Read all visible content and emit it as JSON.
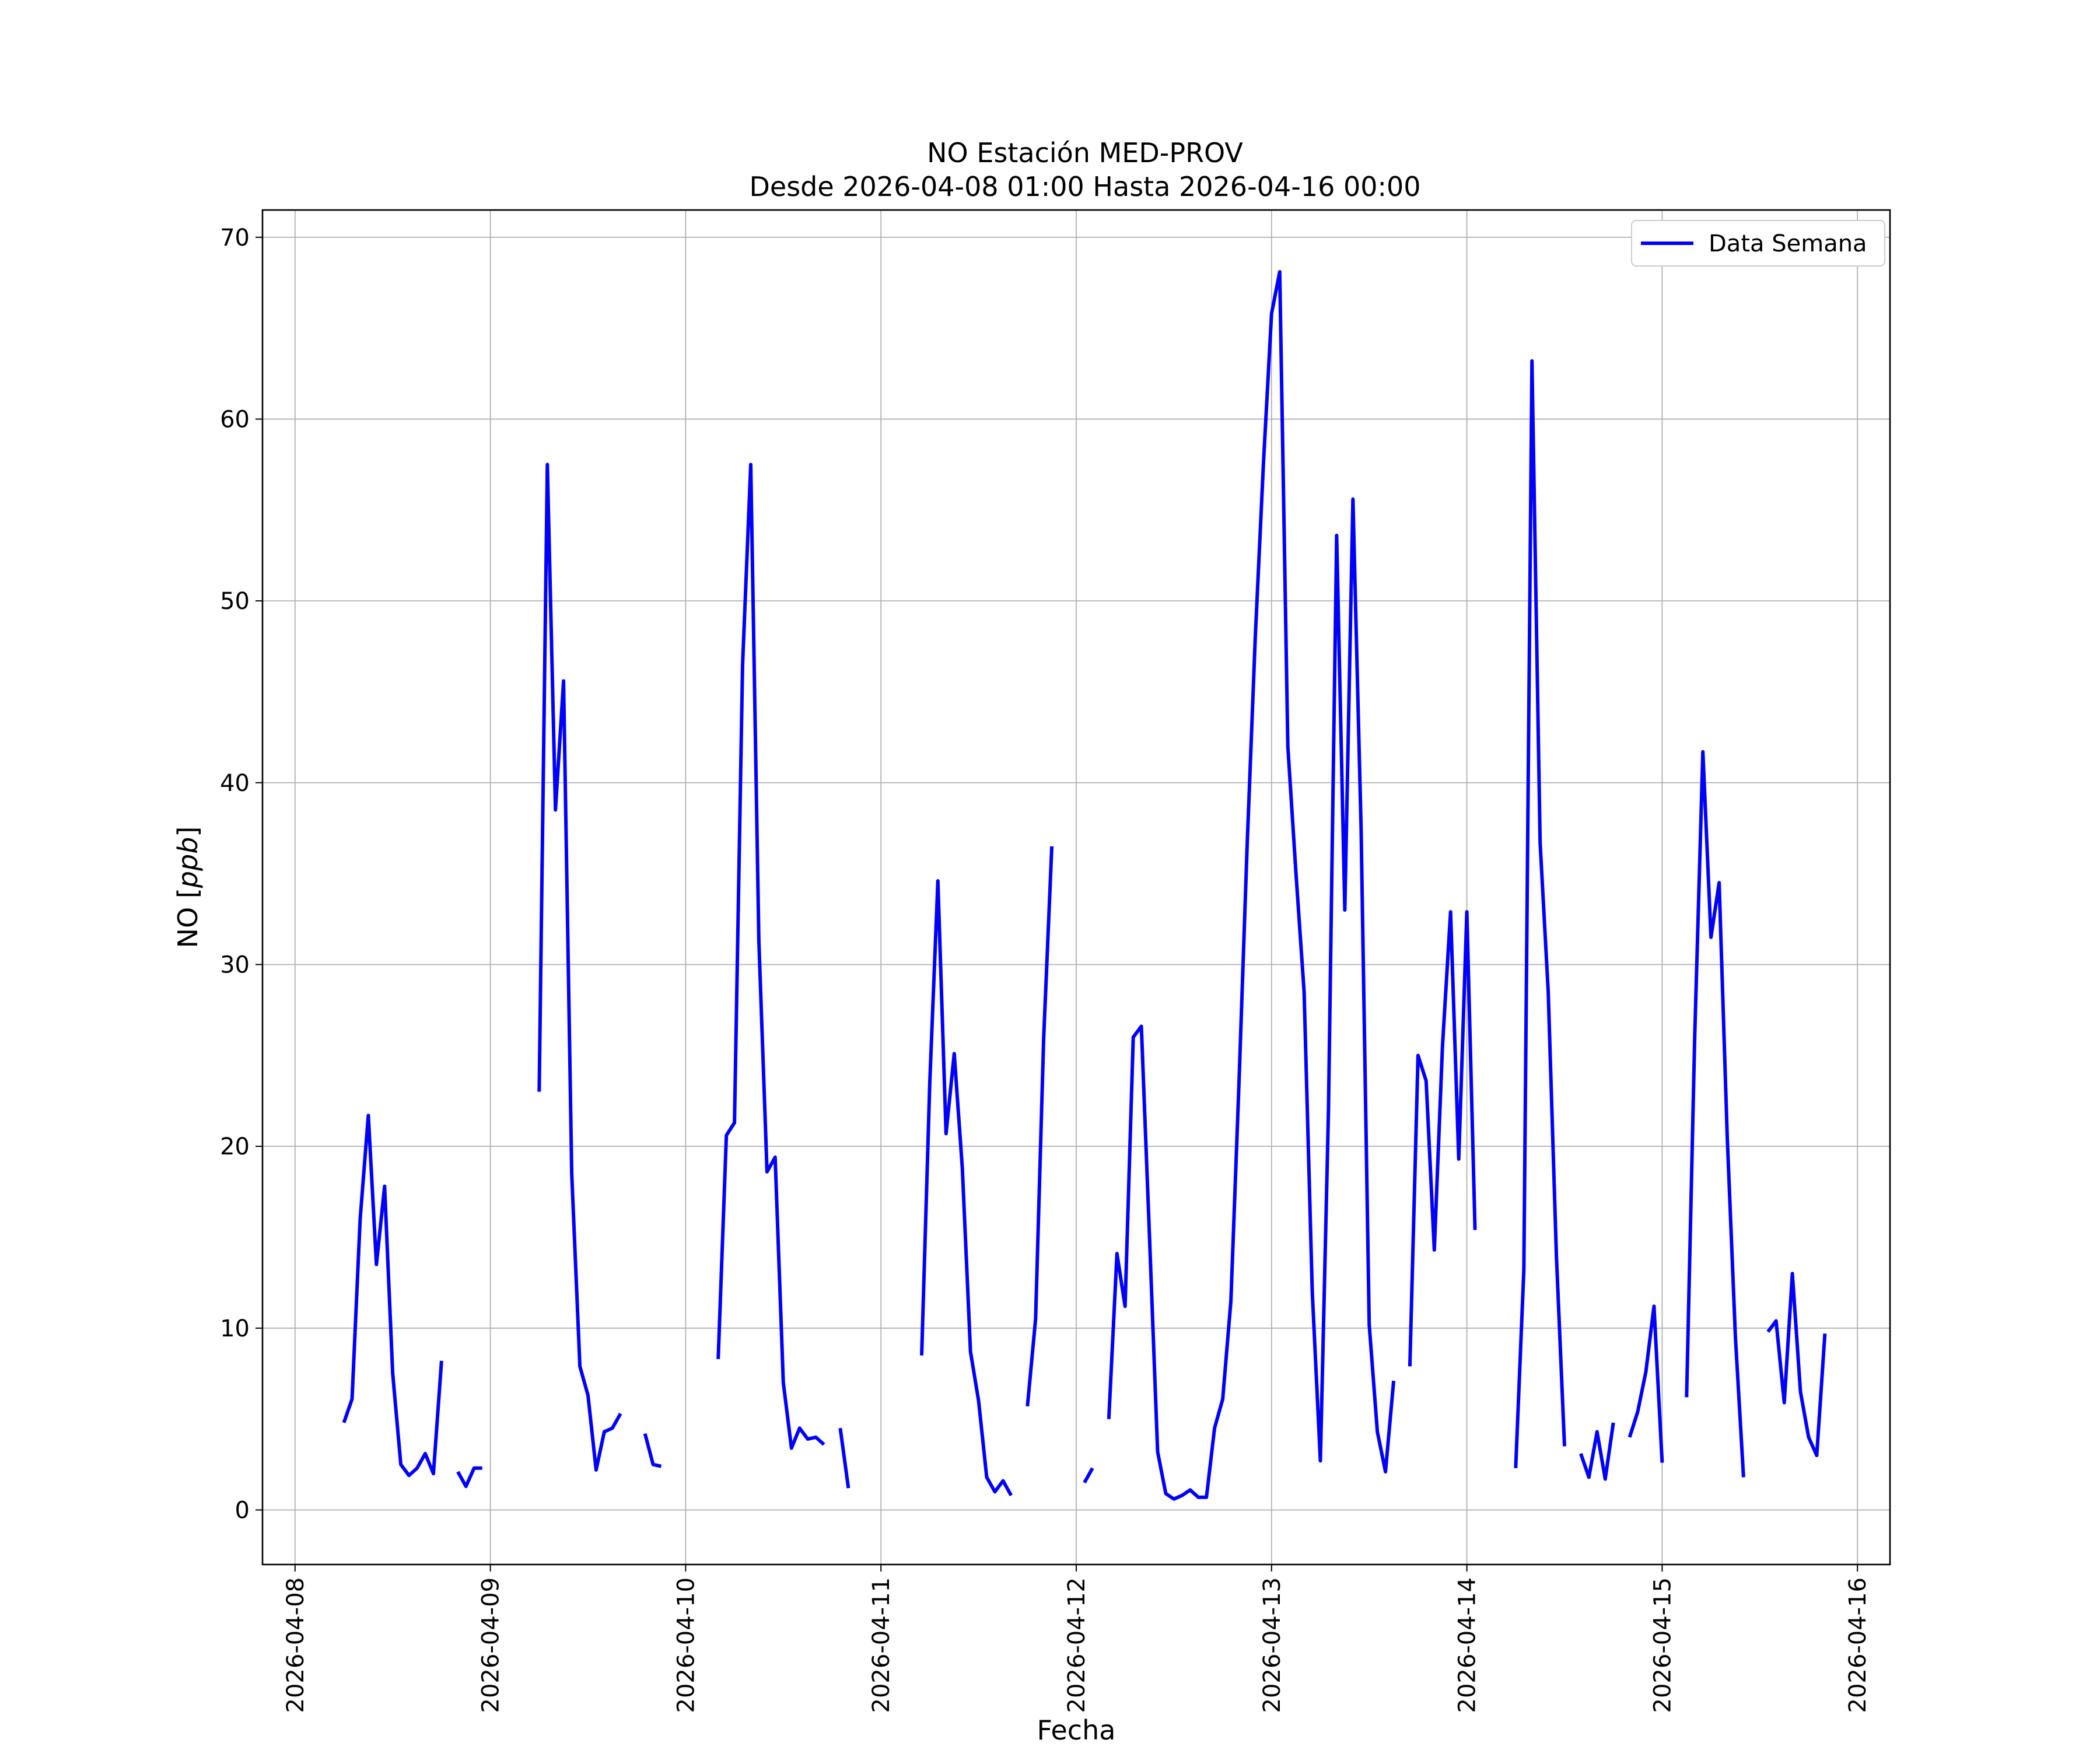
{
  "chart_data": {
    "type": "line",
    "title": "NO Estación MED-PROV",
    "subtitle": "Desde 2026-04-08 01:00 Hasta 2026-04-16 00:00",
    "xlabel": "Fecha",
    "ylabel": "NO [ppb]",
    "ylabel_plain": "NO [",
    "ylabel_italic": "ppb",
    "ylabel_close": "]",
    "x_type": "datetime",
    "xlim": [
      "2026-04-07 20:00",
      "2026-04-16 04:00"
    ],
    "ylim": [
      -3,
      71.5
    ],
    "x_ticks": [
      "2026-04-08",
      "2026-04-09",
      "2026-04-10",
      "2026-04-11",
      "2026-04-12",
      "2026-04-13",
      "2026-04-14",
      "2026-04-15",
      "2026-04-16"
    ],
    "y_ticks": [
      0,
      10,
      20,
      30,
      40,
      50,
      60,
      70
    ],
    "grid": true,
    "legend_position": "top-right",
    "series": [
      {
        "name": "Data Semana",
        "color": "#0000ff",
        "segments": [
          [
            [
              "2026-04-08 06:00",
              4.8
            ],
            [
              "2026-04-08 07:00",
              6.1
            ],
            [
              "2026-04-08 08:00",
              16.0
            ],
            [
              "2026-04-08 09:00",
              21.7
            ],
            [
              "2026-04-08 10:00",
              13.5
            ],
            [
              "2026-04-08 11:00",
              17.8
            ],
            [
              "2026-04-08 12:00",
              7.5
            ],
            [
              "2026-04-08 13:00",
              2.5
            ],
            [
              "2026-04-08 14:00",
              1.9
            ],
            [
              "2026-04-08 15:00",
              2.3
            ],
            [
              "2026-04-08 16:00",
              3.1
            ],
            [
              "2026-04-08 17:00",
              2.0
            ],
            [
              "2026-04-08 18:00",
              8.2
            ]
          ],
          [
            [
              "2026-04-08 20:00",
              2.1
            ],
            [
              "2026-04-08 21:00",
              1.3
            ],
            [
              "2026-04-08 22:00",
              2.3
            ],
            [
              "2026-04-08 23:00",
              2.3
            ]
          ],
          [
            [
              "2026-04-09 06:00",
              23.0
            ],
            [
              "2026-04-09 07:00",
              57.5
            ],
            [
              "2026-04-09 08:00",
              38.5
            ],
            [
              "2026-04-09 09:00",
              45.6
            ],
            [
              "2026-04-09 10:00",
              18.5
            ],
            [
              "2026-04-09 11:00",
              7.9
            ],
            [
              "2026-04-09 12:00",
              6.3
            ],
            [
              "2026-04-09 13:00",
              2.2
            ],
            [
              "2026-04-09 14:00",
              4.3
            ],
            [
              "2026-04-09 15:00",
              4.5
            ],
            [
              "2026-04-09 16:00",
              5.3
            ]
          ],
          [
            [
              "2026-04-09 19:00",
              4.2
            ],
            [
              "2026-04-09 20:00",
              2.5
            ],
            [
              "2026-04-09 21:00",
              2.4
            ]
          ],
          [
            [
              "2026-04-10 04:00",
              8.3
            ],
            [
              "2026-04-10 05:00",
              20.6
            ],
            [
              "2026-04-10 06:00",
              21.3
            ],
            [
              "2026-04-10 07:00",
              46.5
            ],
            [
              "2026-04-10 08:00",
              57.5
            ],
            [
              "2026-04-10 09:00",
              31.3
            ],
            [
              "2026-04-10 10:00",
              18.6
            ],
            [
              "2026-04-10 11:00",
              19.4
            ],
            [
              "2026-04-10 12:00",
              7.0
            ],
            [
              "2026-04-10 13:00",
              3.4
            ],
            [
              "2026-04-10 14:00",
              4.5
            ],
            [
              "2026-04-10 15:00",
              3.9
            ],
            [
              "2026-04-10 16:00",
              4.0
            ],
            [
              "2026-04-10 17:00",
              3.6
            ]
          ],
          [
            [
              "2026-04-10 19:00",
              4.5
            ],
            [
              "2026-04-10 20:00",
              1.2
            ]
          ],
          [
            [
              "2026-04-11 05:00",
              8.5
            ],
            [
              "2026-04-11 06:00",
              23.5
            ],
            [
              "2026-04-11 07:00",
              34.6
            ],
            [
              "2026-04-11 08:00",
              20.7
            ],
            [
              "2026-04-11 09:00",
              25.1
            ],
            [
              "2026-04-11 10:00",
              18.8
            ],
            [
              "2026-04-11 11:00",
              8.7
            ],
            [
              "2026-04-11 12:00",
              6.0
            ],
            [
              "2026-04-11 13:00",
              1.8
            ],
            [
              "2026-04-11 14:00",
              1.0
            ],
            [
              "2026-04-11 15:00",
              1.6
            ],
            [
              "2026-04-11 16:00",
              0.8
            ]
          ],
          [
            [
              "2026-04-11 18:00",
              5.7
            ],
            [
              "2026-04-11 19:00",
              10.5
            ],
            [
              "2026-04-11 20:00",
              26.0
            ],
            [
              "2026-04-11 21:00",
              36.5
            ]
          ],
          [
            [
              "2026-04-12 01:00",
              1.5
            ],
            [
              "2026-04-12 02:00",
              2.3
            ]
          ],
          [
            [
              "2026-04-12 04:00",
              5.0
            ],
            [
              "2026-04-12 05:00",
              14.1
            ],
            [
              "2026-04-12 06:00",
              11.2
            ],
            [
              "2026-04-12 07:00",
              26.0
            ],
            [
              "2026-04-12 08:00",
              26.6
            ],
            [
              "2026-04-12 09:00",
              15.0
            ],
            [
              "2026-04-12 10:00",
              3.2
            ],
            [
              "2026-04-12 11:00",
              0.9
            ],
            [
              "2026-04-12 12:00",
              0.6
            ],
            [
              "2026-04-12 13:00",
              0.8
            ],
            [
              "2026-04-12 14:00",
              1.1
            ],
            [
              "2026-04-12 15:00",
              0.7
            ],
            [
              "2026-04-12 16:00",
              0.7
            ],
            [
              "2026-04-12 17:00",
              4.5
            ],
            [
              "2026-04-12 18:00",
              6.1
            ],
            [
              "2026-04-12 19:00",
              11.5
            ],
            [
              "2026-04-12 20:00",
              23.5
            ],
            [
              "2026-04-12 21:00",
              36.5
            ],
            [
              "2026-04-12 22:00",
              48.0
            ],
            [
              "2026-04-12 23:00",
              57.5
            ],
            [
              "2026-04-13 00:00",
              65.8
            ],
            [
              "2026-04-13 01:00",
              68.1
            ],
            [
              "2026-04-13 02:00",
              42.0
            ],
            [
              "2026-04-13 03:00",
              35.0
            ],
            [
              "2026-04-13 04:00",
              28.5
            ],
            [
              "2026-04-13 05:00",
              12.0
            ],
            [
              "2026-04-13 06:00",
              2.7
            ],
            [
              "2026-04-13 07:00",
              22.0
            ],
            [
              "2026-04-13 08:00",
              53.6
            ],
            [
              "2026-04-13 09:00",
              33.0
            ],
            [
              "2026-04-13 10:00",
              55.6
            ],
            [
              "2026-04-13 11:00",
              37.5
            ],
            [
              "2026-04-13 12:00",
              10.2
            ],
            [
              "2026-04-13 13:00",
              4.3
            ],
            [
              "2026-04-13 14:00",
              2.1
            ],
            [
              "2026-04-13 15:00",
              7.1
            ]
          ],
          [
            [
              "2026-04-13 17:00",
              7.9
            ],
            [
              "2026-04-13 18:00",
              25.0
            ],
            [
              "2026-04-13 19:00",
              23.6
            ],
            [
              "2026-04-13 20:00",
              14.3
            ],
            [
              "2026-04-13 21:00",
              25.5
            ],
            [
              "2026-04-13 22:00",
              32.9
            ],
            [
              "2026-04-13 23:00",
              19.3
            ],
            [
              "2026-04-14 00:00",
              32.9
            ],
            [
              "2026-04-14 01:00",
              15.4
            ]
          ],
          [
            [
              "2026-04-14 06:00",
              2.3
            ],
            [
              "2026-04-14 07:00",
              13.2
            ],
            [
              "2026-04-14 08:00",
              63.2
            ],
            [
              "2026-04-14 09:00",
              36.7
            ],
            [
              "2026-04-14 10:00",
              28.5
            ],
            [
              "2026-04-14 11:00",
              14.0
            ],
            [
              "2026-04-14 12:00",
              3.5
            ]
          ],
          [
            [
              "2026-04-14 14:00",
              3.1
            ],
            [
              "2026-04-14 15:00",
              1.8
            ],
            [
              "2026-04-14 16:00",
              4.3
            ],
            [
              "2026-04-14 17:00",
              1.7
            ],
            [
              "2026-04-14 18:00",
              4.8
            ]
          ],
          [
            [
              "2026-04-14 20:00",
              4.0
            ],
            [
              "2026-04-14 21:00",
              5.4
            ],
            [
              "2026-04-14 22:00",
              7.6
            ],
            [
              "2026-04-14 23:00",
              11.2
            ],
            [
              "2026-04-15 00:00",
              2.6
            ]
          ],
          [
            [
              "2026-04-15 03:00",
              6.2
            ],
            [
              "2026-04-15 04:00",
              26.0
            ],
            [
              "2026-04-15 05:00",
              41.7
            ],
            [
              "2026-04-15 06:00",
              31.5
            ],
            [
              "2026-04-15 07:00",
              34.5
            ],
            [
              "2026-04-15 08:00",
              20.5
            ],
            [
              "2026-04-15 09:00",
              9.5
            ],
            [
              "2026-04-15 10:00",
              1.8
            ]
          ],
          [
            [
              "2026-04-15 13:00",
              9.8
            ],
            [
              "2026-04-15 14:00",
              10.4
            ],
            [
              "2026-04-15 15:00",
              5.9
            ],
            [
              "2026-04-15 16:00",
              13.0
            ],
            [
              "2026-04-15 17:00",
              6.5
            ],
            [
              "2026-04-15 18:00",
              4.0
            ],
            [
              "2026-04-15 19:00",
              3.0
            ],
            [
              "2026-04-15 20:00",
              9.7
            ]
          ]
        ]
      }
    ]
  }
}
